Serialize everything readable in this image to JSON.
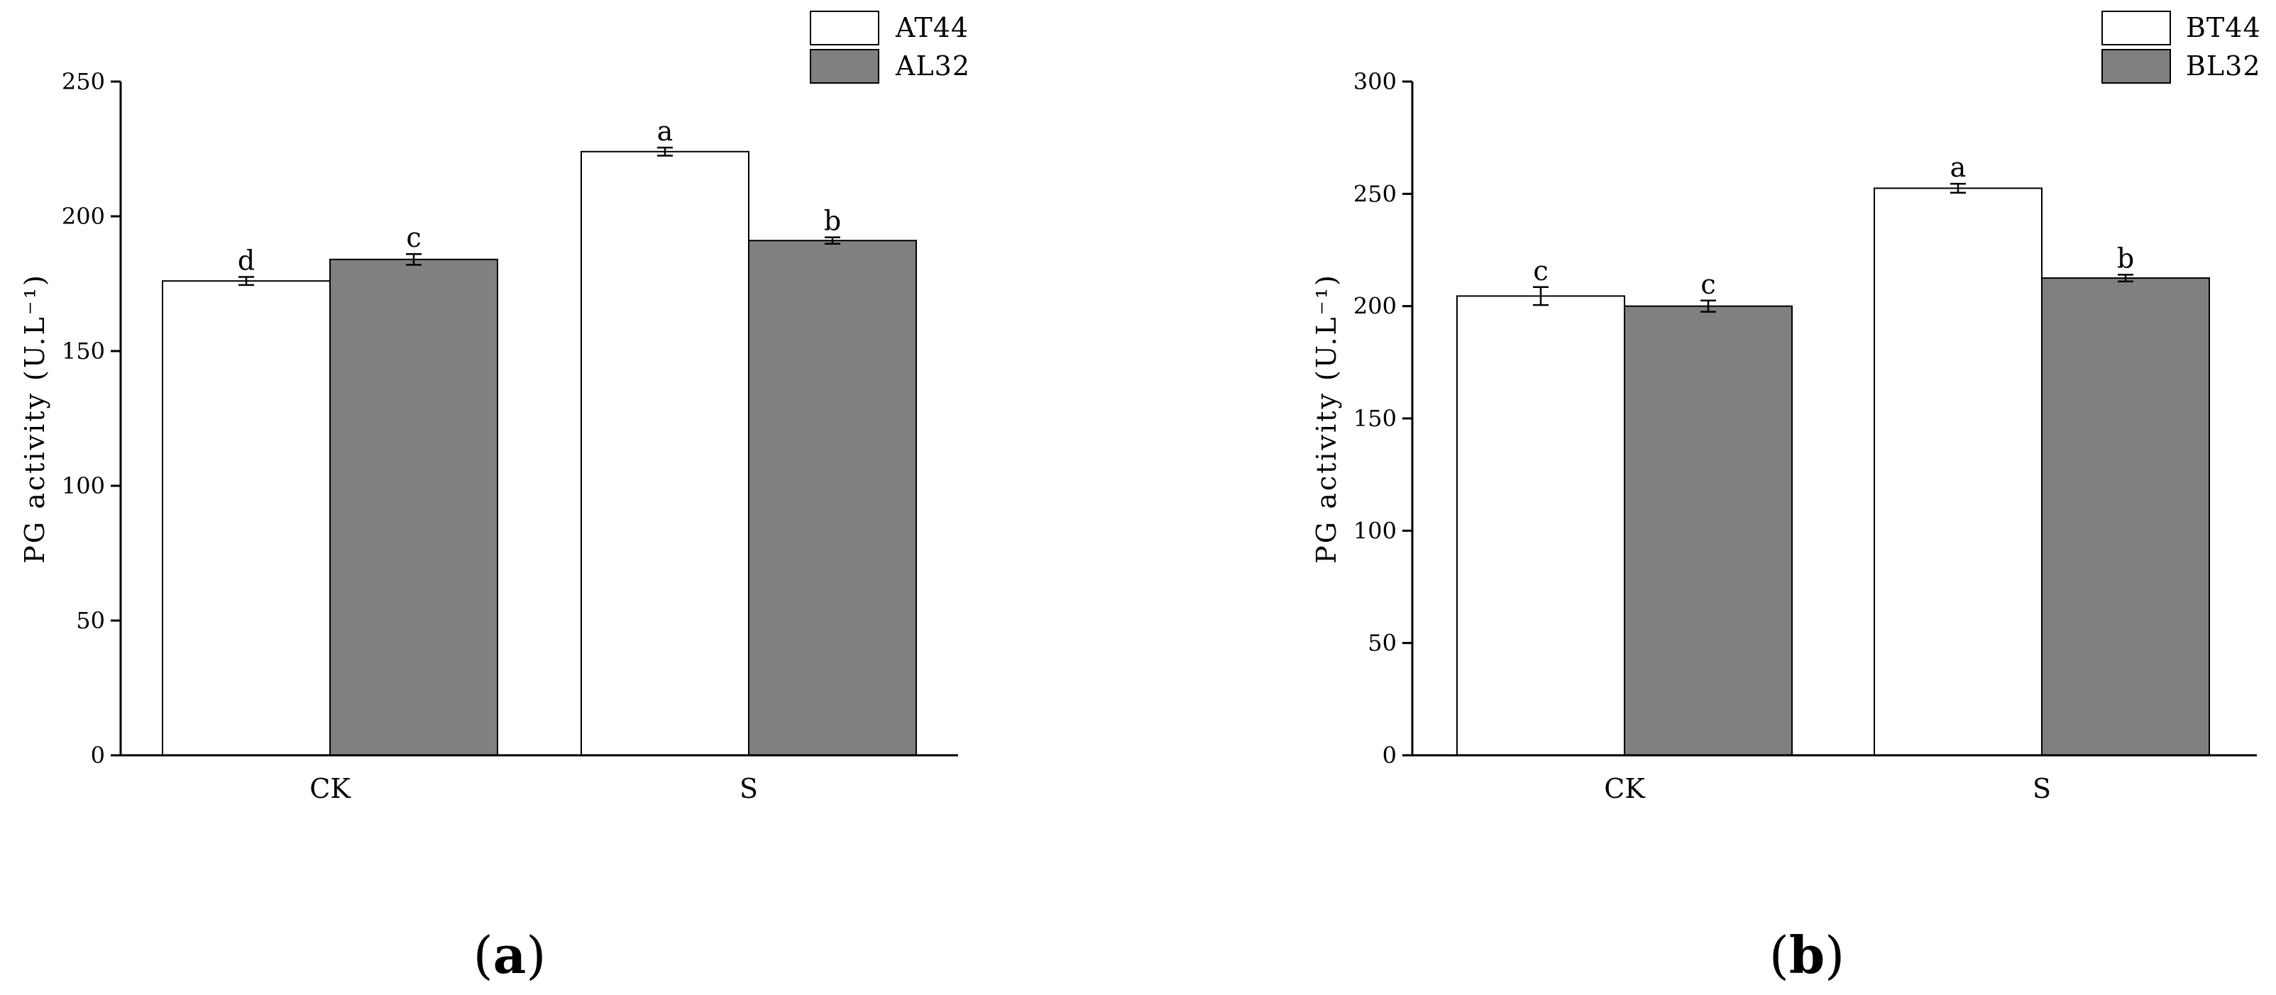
{
  "panel_labels": [
    "(a)",
    "(b)"
  ],
  "chart_data": [
    {
      "type": "bar",
      "panel": "(a)",
      "ylabel": "PG activity (U.L⁻¹)",
      "xlabel": "",
      "categories": [
        "CK",
        "S"
      ],
      "ylim": [
        0,
        250
      ],
      "yticks": [
        0,
        50,
        100,
        150,
        200,
        250
      ],
      "legend_position": "top-right",
      "grid": false,
      "series": [
        {
          "name": "AT44",
          "color": "#ffffff",
          "values": [
            176,
            224
          ],
          "errors": [
            1.5,
            1.5
          ],
          "letters": [
            "d",
            "a"
          ]
        },
        {
          "name": "AL32",
          "color": "#808080",
          "values": [
            184,
            191
          ],
          "errors": [
            2,
            1.2
          ],
          "letters": [
            "c",
            "b"
          ]
        }
      ]
    },
    {
      "type": "bar",
      "panel": "(b)",
      "ylabel": "PG activity (U.L⁻¹)",
      "xlabel": "",
      "categories": [
        "CK",
        "S"
      ],
      "ylim": [
        0,
        300
      ],
      "yticks": [
        0,
        50,
        100,
        150,
        200,
        250,
        300
      ],
      "legend_position": "top-right",
      "grid": false,
      "series": [
        {
          "name": "BT44",
          "color": "#ffffff",
          "values": [
            204.5,
            252.5
          ],
          "errors": [
            4,
            2
          ],
          "letters": [
            "c",
            "a"
          ]
        },
        {
          "name": "BL32",
          "color": "#808080",
          "values": [
            200,
            212.5
          ],
          "errors": [
            2.5,
            1.5
          ],
          "letters": [
            "c",
            "b"
          ]
        }
      ]
    }
  ]
}
